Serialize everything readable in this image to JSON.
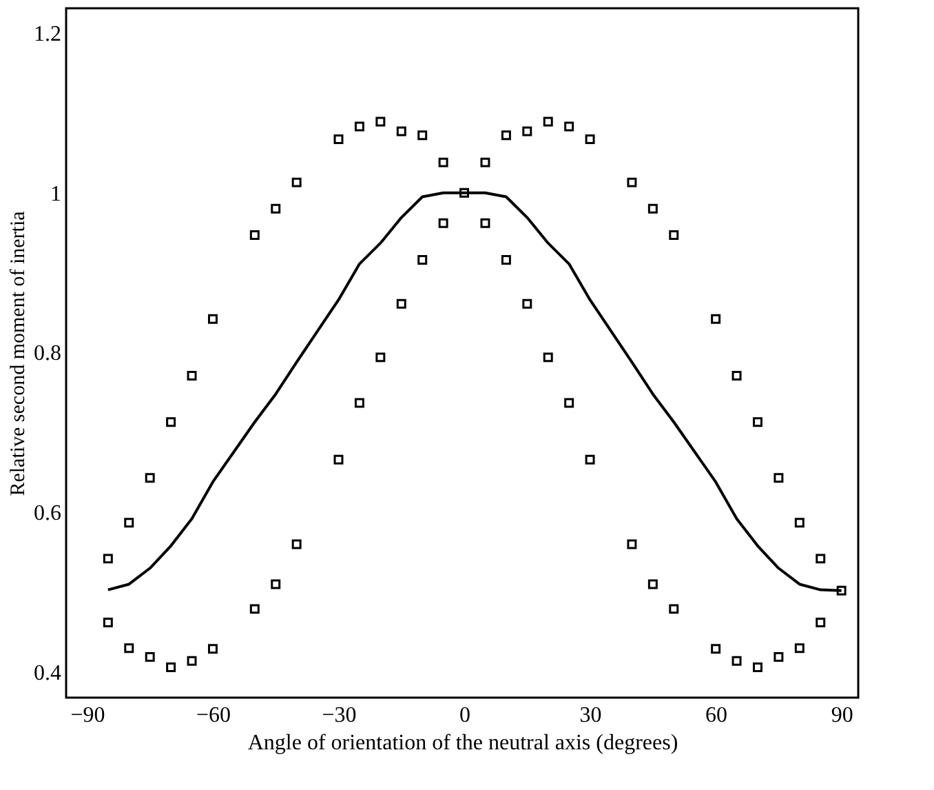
{
  "chart_data": {
    "type": "line",
    "xlabel": "Angle of orientation of the neutral axis (degrees)",
    "ylabel": "Relative second moment of inertia",
    "xlim": [
      -95,
      94
    ],
    "ylim": [
      0.368,
      1.231
    ],
    "xticks": [
      {
        "value": -90,
        "label": "−90"
      },
      {
        "value": -60,
        "label": "−60"
      },
      {
        "value": -30,
        "label": "−30"
      },
      0,
      30,
      60,
      90
    ],
    "yticks": [
      0.4,
      0.6,
      0.8,
      1,
      1.2
    ],
    "grid": false,
    "series": [
      {
        "color": "#000000",
        "marker": "none",
        "line_style": "solid",
        "x": [
          -85,
          -80,
          -75,
          -70,
          -65,
          -60,
          -50,
          -45,
          -40,
          -30,
          -25,
          -20,
          -15,
          -10,
          -5,
          0,
          5,
          10,
          15,
          20,
          25,
          30,
          40,
          45,
          50,
          60,
          65,
          70,
          75,
          80,
          85,
          90
        ],
        "values": [
          0.503,
          0.51,
          0.53,
          0.558,
          0.592,
          0.638,
          0.713,
          0.748,
          0.788,
          0.866,
          0.911,
          0.937,
          0.969,
          0.995,
          1.0,
          1.0,
          1.0,
          0.995,
          0.969,
          0.937,
          0.911,
          0.866,
          0.788,
          0.748,
          0.713,
          0.638,
          0.592,
          0.558,
          0.53,
          0.51,
          0.503,
          0.502
        ]
      },
      {
        "type": "scatter",
        "color": "#000000",
        "marker": "square",
        "x": [
          -85,
          -80,
          -75,
          -70,
          -65,
          -60,
          -50,
          -45,
          -40,
          -30,
          -25,
          -20,
          -15,
          -10,
          -5,
          0,
          5,
          10,
          15,
          20,
          25,
          30,
          40,
          45,
          50,
          60,
          65,
          70,
          75,
          80,
          85,
          90
        ],
        "values": [
          0.542,
          0.587,
          0.643,
          0.713,
          0.771,
          0.842,
          0.947,
          0.98,
          1.013,
          1.067,
          1.083,
          1.089,
          1.077,
          1.072,
          1.038,
          1.0,
          1.038,
          1.072,
          1.077,
          1.089,
          1.083,
          1.067,
          1.013,
          0.98,
          0.947,
          0.842,
          0.771,
          0.713,
          0.643,
          0.587,
          0.542,
          0.502
        ]
      },
      {
        "type": "scatter",
        "color": "#000000",
        "marker": "square",
        "x": [
          -85,
          -80,
          -75,
          -70,
          -65,
          -60,
          -50,
          -45,
          -40,
          -30,
          -25,
          -20,
          -15,
          -10,
          -5,
          5,
          10,
          15,
          20,
          25,
          30,
          40,
          45,
          50,
          60,
          65,
          70,
          75,
          80,
          85
        ],
        "values": [
          0.462,
          0.43,
          0.419,
          0.406,
          0.414,
          0.429,
          0.479,
          0.51,
          0.56,
          0.666,
          0.737,
          0.794,
          0.861,
          0.916,
          0.962,
          0.962,
          0.916,
          0.861,
          0.794,
          0.737,
          0.666,
          0.56,
          0.51,
          0.479,
          0.429,
          0.414,
          0.406,
          0.419,
          0.43,
          0.462
        ]
      }
    ]
  }
}
